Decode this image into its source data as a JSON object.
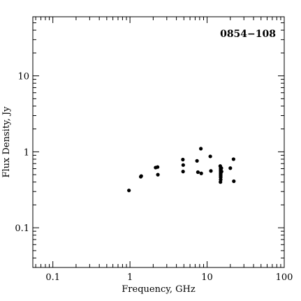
{
  "chart_data": {
    "type": "scatter",
    "title": "0854−108",
    "xlabel": "Frequency, GHz",
    "ylabel": "Flux Density, Jy",
    "xscale": "log",
    "yscale": "log",
    "xlim": [
      0.055,
      100
    ],
    "ylim": [
      0.03,
      60
    ],
    "xticks": [
      {
        "value": 0.1,
        "label": "0.1"
      },
      {
        "value": 1,
        "label": "1"
      },
      {
        "value": 10,
        "label": "10"
      },
      {
        "value": 100,
        "label": "100"
      }
    ],
    "yticks": [
      {
        "value": 0.1,
        "label": "0.1"
      },
      {
        "value": 1,
        "label": "1"
      },
      {
        "value": 10,
        "label": "10"
      }
    ],
    "title_position": "top-right",
    "grid": false,
    "points": [
      {
        "x": 0.97,
        "y": 0.31
      },
      {
        "x": 1.38,
        "y": 0.47
      },
      {
        "x": 1.4,
        "y": 0.48
      },
      {
        "x": 2.15,
        "y": 0.62
      },
      {
        "x": 2.28,
        "y": 0.63
      },
      {
        "x": 2.3,
        "y": 0.5
      },
      {
        "x": 4.85,
        "y": 0.79
      },
      {
        "x": 4.9,
        "y": 0.67
      },
      {
        "x": 4.88,
        "y": 0.55
      },
      {
        "x": 7.4,
        "y": 0.76
      },
      {
        "x": 7.6,
        "y": 0.54
      },
      {
        "x": 8.3,
        "y": 1.1
      },
      {
        "x": 8.4,
        "y": 0.52
      },
      {
        "x": 11.0,
        "y": 0.87
      },
      {
        "x": 11.2,
        "y": 0.56
      },
      {
        "x": 14.8,
        "y": 0.65
      },
      {
        "x": 15.0,
        "y": 0.62
      },
      {
        "x": 15.0,
        "y": 0.6
      },
      {
        "x": 15.0,
        "y": 0.58
      },
      {
        "x": 15.0,
        "y": 0.56
      },
      {
        "x": 15.0,
        "y": 0.54
      },
      {
        "x": 15.0,
        "y": 0.52
      },
      {
        "x": 15.0,
        "y": 0.5
      },
      {
        "x": 15.0,
        "y": 0.48
      },
      {
        "x": 15.0,
        "y": 0.46
      },
      {
        "x": 15.0,
        "y": 0.43
      },
      {
        "x": 14.9,
        "y": 0.4
      },
      {
        "x": 15.3,
        "y": 0.61
      },
      {
        "x": 15.4,
        "y": 0.55
      },
      {
        "x": 20.0,
        "y": 0.61
      },
      {
        "x": 22.0,
        "y": 0.8
      },
      {
        "x": 22.2,
        "y": 0.41
      }
    ]
  }
}
